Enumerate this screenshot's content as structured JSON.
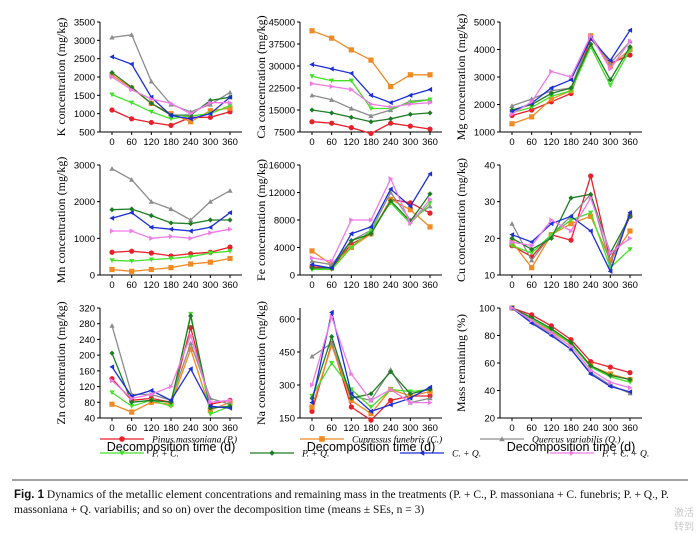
{
  "figure": {
    "caption_label": "Fig. 1",
    "caption_text": "Dynamics of the metallic element concentrations and remaining mass in the treatments (P. + C., P. massoniana + C. funebris; P. + Q., P. massoniana + Q. variabilis; and so on) over the decomposition time (means ± SEs, n = 3)",
    "watermark_1": "激活",
    "watermark_2": "转到"
  },
  "legend": [
    {
      "label": "Pinus massoniana (P.)",
      "color": "#e8202a",
      "marker": "circle"
    },
    {
      "label": "Cupressus funebris (C.)",
      "color": "#f08a24",
      "marker": "square"
    },
    {
      "label": "Quercus variabilis (Q.)",
      "color": "#8c8c8c",
      "marker": "triangle"
    },
    {
      "label": "P. + C.",
      "color": "#44e02a",
      "marker": "triangle-down"
    },
    {
      "label": "P. + Q.",
      "color": "#1e7d24",
      "marker": "diamond"
    },
    {
      "label": "C. + Q.",
      "color": "#1b2fd6",
      "marker": "triangle-left"
    },
    {
      "label": "P. + C. + Q.",
      "color": "#f07ae8",
      "marker": "triangle-right"
    }
  ],
  "chart_data": [
    {
      "type": "line",
      "id": "K",
      "ylabel": "K concentration (mg/kg)",
      "xlabel": "",
      "x": [
        0,
        60,
        120,
        180,
        240,
        300,
        360
      ],
      "ylim": [
        500,
        3500
      ],
      "yticks": [
        500,
        1000,
        1500,
        2000,
        2500,
        3000,
        3500
      ],
      "series": [
        {
          "values": [
            1100,
            860,
            760,
            680,
            900,
            900,
            1050
          ]
        },
        {
          "values": [
            2050,
            1700,
            1280,
            1000,
            780,
            1080,
            1150
          ]
        },
        {
          "values": [
            3080,
            3150,
            1880,
            1250,
            1050,
            1250,
            1580
          ]
        },
        {
          "values": [
            1520,
            1300,
            1050,
            860,
            940,
            1000,
            1220
          ]
        },
        {
          "values": [
            2120,
            1720,
            1280,
            960,
            960,
            1360,
            1450
          ]
        },
        {
          "values": [
            2550,
            2350,
            1450,
            950,
            860,
            1000,
            1450
          ]
        },
        {
          "values": [
            2000,
            1650,
            1400,
            1280,
            1000,
            1300,
            1300
          ]
        }
      ]
    },
    {
      "type": "line",
      "id": "Ca",
      "ylabel": "Ca concentration (mg/kg)",
      "xlabel": "",
      "x": [
        0,
        60,
        120,
        180,
        240,
        300,
        360
      ],
      "ylim": [
        7500,
        45000
      ],
      "yticks": [
        7500,
        15000,
        22500,
        30000,
        37500,
        45000
      ],
      "series": [
        {
          "values": [
            11000,
            10500,
            9000,
            7000,
            10500,
            9500,
            8500
          ]
        },
        {
          "values": [
            42000,
            39500,
            35500,
            32000,
            23000,
            27000,
            27000
          ]
        },
        {
          "values": [
            20000,
            18500,
            15500,
            13000,
            15000,
            18000,
            18500
          ]
        },
        {
          "values": [
            26500,
            25000,
            25000,
            15500,
            15500,
            17500,
            18500
          ]
        },
        {
          "values": [
            15000,
            14000,
            12500,
            11000,
            12000,
            13500,
            14000
          ]
        },
        {
          "values": [
            30500,
            29000,
            27500,
            20000,
            17500,
            20000,
            22000
          ]
        },
        {
          "values": [
            24000,
            23000,
            22000,
            17000,
            16000,
            17000,
            17500
          ]
        }
      ]
    },
    {
      "type": "line",
      "id": "Mg",
      "ylabel": "Mg concentration (mg/kg)",
      "xlabel": "",
      "x": [
        0,
        60,
        120,
        180,
        240,
        300,
        360
      ],
      "ylim": [
        1000,
        5000
      ],
      "yticks": [
        1000,
        2000,
        3000,
        4000,
        5000
      ],
      "series": [
        {
          "values": [
            1600,
            1800,
            2100,
            2400,
            4400,
            3500,
            3800
          ]
        },
        {
          "values": [
            1300,
            1550,
            2200,
            2500,
            4500,
            3400,
            4000
          ]
        },
        {
          "values": [
            1950,
            2200,
            2500,
            2600,
            4500,
            3500,
            4300
          ]
        },
        {
          "values": [
            1700,
            1900,
            2300,
            2500,
            4100,
            2700,
            4000
          ]
        },
        {
          "values": [
            1800,
            2000,
            2400,
            2600,
            4200,
            2900,
            4100
          ]
        },
        {
          "values": [
            1750,
            2050,
            2600,
            2900,
            4400,
            3600,
            4700
          ]
        },
        {
          "values": [
            1650,
            2100,
            3200,
            3000,
            4500,
            3300,
            4300
          ]
        }
      ]
    },
    {
      "type": "line",
      "id": "Mn",
      "ylabel": "Mn concentration (mg/kg)",
      "xlabel": "",
      "x": [
        0,
        60,
        120,
        180,
        240,
        300,
        360
      ],
      "ylim": [
        0,
        3000
      ],
      "yticks": [
        0,
        1000,
        2000,
        3000
      ],
      "series": [
        {
          "values": [
            620,
            650,
            600,
            520,
            580,
            620,
            760
          ]
        },
        {
          "values": [
            150,
            100,
            150,
            200,
            300,
            350,
            450
          ]
        },
        {
          "values": [
            2900,
            2600,
            2000,
            1800,
            1500,
            2000,
            2300
          ]
        },
        {
          "values": [
            400,
            380,
            420,
            450,
            500,
            600,
            650
          ]
        },
        {
          "values": [
            1780,
            1800,
            1620,
            1420,
            1400,
            1500,
            1500
          ]
        },
        {
          "values": [
            1550,
            1700,
            1300,
            1250,
            1200,
            1300,
            1700
          ]
        },
        {
          "values": [
            1200,
            1200,
            1000,
            1050,
            1000,
            1150,
            1250
          ]
        }
      ]
    },
    {
      "type": "line",
      "id": "Fe",
      "ylabel": "Fe concentration (mg/kg)",
      "xlabel": "",
      "x": [
        0,
        60,
        120,
        180,
        240,
        300,
        360
      ],
      "ylim": [
        0,
        16000
      ],
      "yticks": [
        0,
        4000,
        8000,
        12000,
        16000
      ],
      "series": [
        {
          "values": [
            1200,
            1000,
            4500,
            6000,
            11000,
            10500,
            9000
          ]
        },
        {
          "values": [
            3500,
            1500,
            4000,
            6000,
            11000,
            9500,
            7000
          ]
        },
        {
          "values": [
            2000,
            1500,
            5000,
            6500,
            12000,
            8000,
            10000
          ]
        },
        {
          "values": [
            800,
            800,
            4000,
            6500,
            10500,
            7500,
            10500
          ]
        },
        {
          "values": [
            1000,
            1000,
            5000,
            6000,
            10800,
            7800,
            11800
          ]
        },
        {
          "values": [
            1500,
            1000,
            6000,
            7000,
            12500,
            10000,
            14700
          ]
        },
        {
          "values": [
            2500,
            2000,
            8000,
            8000,
            14000,
            7500,
            11000
          ]
        }
      ]
    },
    {
      "type": "line",
      "id": "Cu",
      "ylabel": "Cu concentration (mg/kg)",
      "xlabel": "",
      "x": [
        0,
        60,
        120,
        180,
        240,
        300,
        360
      ],
      "ylim": [
        10,
        40
      ],
      "yticks": [
        10,
        20,
        30,
        40
      ],
      "series": [
        {
          "values": [
            18,
            15,
            21,
            19.5,
            37,
            14,
            26
          ]
        },
        {
          "values": [
            19,
            12,
            21,
            24,
            26,
            14,
            22
          ]
        },
        {
          "values": [
            24,
            14,
            21,
            26,
            32,
            13,
            27
          ]
        },
        {
          "values": [
            18,
            16,
            21,
            25,
            27,
            12,
            17
          ]
        },
        {
          "values": [
            20,
            17,
            20,
            31,
            32,
            16,
            26
          ]
        },
        {
          "values": [
            21,
            19,
            24,
            26,
            22,
            11,
            27
          ]
        },
        {
          "values": [
            19,
            18,
            25,
            22,
            31,
            16,
            20
          ]
        }
      ]
    },
    {
      "type": "line",
      "id": "Zn",
      "ylabel": "Zn concentration (mg/kg)",
      "xlabel": "Decomposition time (d)",
      "x": [
        0,
        60,
        120,
        180,
        240,
        300,
        360
      ],
      "ylim": [
        40,
        320
      ],
      "yticks": [
        40,
        80,
        120,
        160,
        200,
        240,
        280,
        320
      ],
      "series": [
        {
          "values": [
            140,
            85,
            90,
            80,
            270,
            75,
            85
          ]
        },
        {
          "values": [
            75,
            55,
            80,
            75,
            215,
            60,
            80
          ]
        },
        {
          "values": [
            275,
            100,
            100,
            85,
            230,
            90,
            75
          ]
        },
        {
          "values": [
            105,
            70,
            85,
            70,
            305,
            50,
            70
          ]
        },
        {
          "values": [
            205,
            80,
            85,
            80,
            300,
            65,
            70
          ]
        },
        {
          "values": [
            170,
            95,
            110,
            85,
            165,
            70,
            65
          ]
        },
        {
          "values": [
            135,
            90,
            100,
            120,
            250,
            80,
            85
          ]
        }
      ]
    },
    {
      "type": "line",
      "id": "Na",
      "ylabel": "Na concentration (mg/kg)",
      "xlabel": "Decomposition time (d)",
      "x": [
        0,
        60,
        120,
        180,
        240,
        300,
        360
      ],
      "ylim": [
        150,
        650
      ],
      "yticks": [
        150,
        300,
        450,
        600
      ],
      "series": [
        {
          "values": [
            180,
            490,
            200,
            140,
            230,
            250,
            250
          ]
        },
        {
          "values": [
            200,
            480,
            230,
            170,
            280,
            250,
            270
          ]
        },
        {
          "values": [
            430,
            490,
            250,
            230,
            370,
            220,
            240
          ]
        },
        {
          "values": [
            250,
            400,
            280,
            200,
            280,
            270,
            280
          ]
        },
        {
          "values": [
            240,
            520,
            240,
            260,
            360,
            260,
            280
          ]
        },
        {
          "values": [
            220,
            630,
            260,
            180,
            210,
            240,
            290
          ]
        },
        {
          "values": [
            300,
            610,
            350,
            230,
            280,
            220,
            220
          ]
        }
      ]
    },
    {
      "type": "line",
      "id": "Mass",
      "ylabel": "Mass remaining (%)",
      "xlabel": "Decomposition time (d)",
      "x": [
        0,
        60,
        120,
        180,
        240,
        300,
        360
      ],
      "ylim": [
        20,
        100
      ],
      "yticks": [
        20,
        40,
        60,
        80,
        100
      ],
      "series": [
        {
          "values": [
            100,
            95,
            87,
            77,
            61,
            57,
            53
          ]
        },
        {
          "values": [
            100,
            92,
            83,
            74,
            58,
            52,
            48
          ]
        },
        {
          "values": [
            100,
            90,
            81,
            70,
            53,
            44,
            38
          ]
        },
        {
          "values": [
            100,
            92,
            84,
            74,
            57,
            50,
            46
          ]
        },
        {
          "values": [
            100,
            93,
            85,
            75,
            58,
            51,
            48
          ]
        },
        {
          "values": [
            100,
            89,
            80,
            70,
            52,
            43,
            39
          ]
        },
        {
          "values": [
            100,
            91,
            82,
            72,
            55,
            46,
            42
          ]
        }
      ]
    }
  ]
}
